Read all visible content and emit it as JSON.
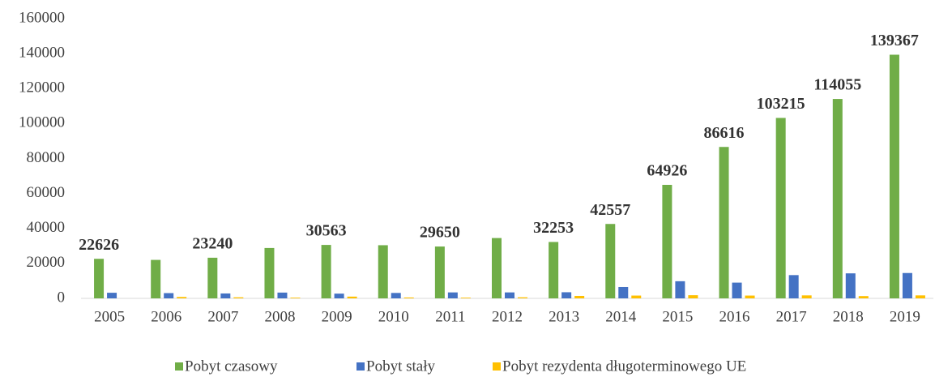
{
  "chart_data": {
    "type": "bar",
    "categories": [
      "2005",
      "2006",
      "2007",
      "2008",
      "2009",
      "2010",
      "2011",
      "2012",
      "2013",
      "2014",
      "2015",
      "2016",
      "2017",
      "2018",
      "2019"
    ],
    "series": [
      {
        "name": "Pobyt czasowy",
        "color": "#70ad47",
        "values": [
          22626,
          22000,
          23240,
          28800,
          30563,
          30400,
          29650,
          34500,
          32253,
          42557,
          64926,
          86616,
          103215,
          114055,
          139367
        ],
        "show_labels": [
          true,
          false,
          true,
          false,
          true,
          false,
          true,
          false,
          true,
          true,
          true,
          true,
          true,
          true,
          true
        ]
      },
      {
        "name": "Pobyt stały",
        "color": "#4472c4",
        "values": [
          3200,
          3000,
          2800,
          3300,
          2700,
          3100,
          3400,
          3400,
          3500,
          6500,
          9800,
          9000,
          13300,
          14300,
          14500
        ]
      },
      {
        "name": "Pobyt rezydenta długoterminowego UE",
        "color": "#ffc000",
        "values": [
          0,
          800,
          600,
          400,
          1000,
          500,
          400,
          600,
          1400,
          1600,
          1800,
          1600,
          1700,
          1300,
          1700
        ]
      }
    ],
    "ylim": [
      0,
      160000
    ],
    "yticks": [
      0,
      20000,
      40000,
      60000,
      80000,
      100000,
      120000,
      140000,
      160000
    ],
    "grid": false,
    "legend": "bottom"
  }
}
